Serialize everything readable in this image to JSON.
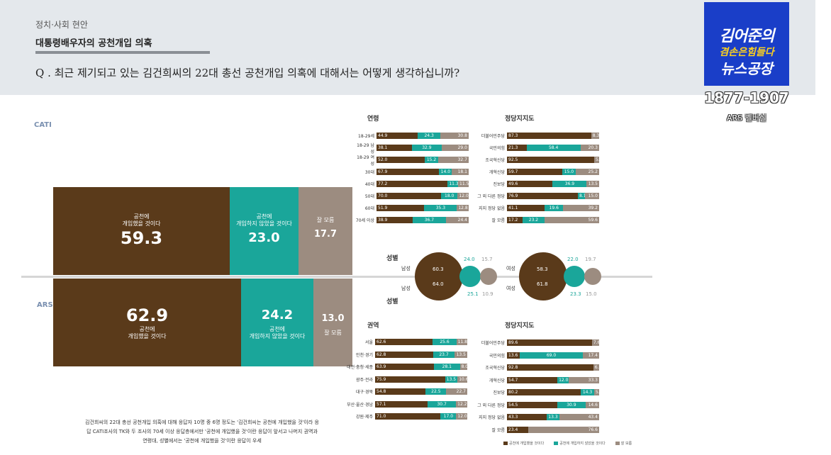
{
  "header": {
    "category": "정치·사회 현안",
    "title": "대통령배우자의 공천개입 의혹",
    "question": "Q . 최근 제기되고 있는 김건희씨의 22대 총선 공천개입 의혹에 대해서는 어떻게 생각하십니까?"
  },
  "logo": {
    "line1": "김어준의",
    "line2": "겸손은힘들다",
    "line3": "뉴스공장",
    "phone": "1877-1907",
    "caption": "ARS 벨버실"
  },
  "main": {
    "cati": {
      "label": "CATI",
      "seg1_label": "공천에\n개입했을 것이다",
      "seg1_value": "59.3",
      "seg2_label": "공천에\n개입하지 않았을 것이다",
      "seg2_value": "23.0",
      "seg3_label": "잘 모름",
      "seg3_value": "17.7"
    },
    "ars": {
      "label": "ARS",
      "seg1_label": "공천에\n개입했을 것이다",
      "seg1_value": "62.9",
      "seg2_label": "공천에\n개입하지 않았을 것이다",
      "seg2_value": "24.2",
      "seg3_label": "잘 모름",
      "seg3_value": "13.0"
    }
  },
  "footnote": "김건희씨의 22대 총선 공천개입 의혹에 대해 응답자 10명 중 6명 정도는 '김건희씨는 공천에 개입했을 것'이라 응답 CATI조사의 TK와 두 조사의 70세 이상 응답층에서만 '공천에 개입했을 것'이란 응답이 앞서고 나머지 권역과 연령대, 성별에서는 '공천에 개입했을 것'이란 응답이 우세",
  "colors": {
    "brown": "#5a3a1a",
    "teal": "#1aa69a",
    "gray": "#9c8c80"
  },
  "age": {
    "title": "연령",
    "rows": [
      {
        "label": "18-29세",
        "v": [
          44.9,
          24.3,
          30.8
        ]
      },
      {
        "label": "18-29 남성",
        "v": [
          38.1,
          32.9,
          29.0
        ]
      },
      {
        "label": "18-29 여성",
        "v": [
          52.0,
          15.2,
          32.7
        ]
      },
      {
        "label": "30대",
        "v": [
          67.9,
          14.0,
          18.1
        ]
      },
      {
        "label": "40대",
        "v": [
          77.2,
          11.3,
          11.5
        ]
      },
      {
        "label": "50대",
        "v": [
          70.0,
          18.0,
          12.0
        ]
      },
      {
        "label": "60대",
        "v": [
          51.9,
          35.3,
          12.8
        ]
      },
      {
        "label": "70세 이상",
        "v": [
          38.9,
          36.7,
          24.4
        ]
      }
    ]
  },
  "party_cati": {
    "title": "정당지지도",
    "rows": [
      {
        "label": "더불어민주당",
        "v": [
          87.3,
          null,
          8.3
        ]
      },
      {
        "label": "국민의힘",
        "v": [
          21.3,
          58.4,
          20.3
        ]
      },
      {
        "label": "조국혁신당",
        "v": [
          92.5,
          null,
          5.3
        ]
      },
      {
        "label": "개혁신당",
        "v": [
          59.7,
          15.0,
          25.2
        ]
      },
      {
        "label": "진보당",
        "v": [
          49.6,
          36.9,
          13.5
        ]
      },
      {
        "label": "그 외 다른 정당",
        "v": [
          76.9,
          8.1,
          15.0
        ]
      },
      {
        "label": "지지 정당 없음",
        "v": [
          41.1,
          19.6,
          39.2
        ]
      },
      {
        "label": "잘 모름",
        "v": [
          17.2,
          23.2,
          59.6
        ]
      }
    ]
  },
  "gender": {
    "title": "성별",
    "male": "남성",
    "female": "여성",
    "male_cati": [
      60.3,
      24.0,
      15.7
    ],
    "male_ars": [
      64.0,
      25.1,
      10.9
    ],
    "female_cati": [
      58.3,
      22.0,
      19.7
    ],
    "female_ars": [
      61.8,
      23.3,
      15.0
    ]
  },
  "region": {
    "title": "권역",
    "rows": [
      {
        "label": "서울",
        "v": [
          62.6,
          25.6,
          11.8
        ]
      },
      {
        "label": "인천·경기",
        "v": [
          62.8,
          23.7,
          13.5
        ]
      },
      {
        "label": "대전·충청·세종",
        "v": [
          63.9,
          28.1,
          8.0
        ]
      },
      {
        "label": "광주·전라",
        "v": [
          75.9,
          13.5,
          10.6
        ]
      },
      {
        "label": "대구·경북",
        "v": [
          54.8,
          22.5,
          22.7
        ]
      },
      {
        "label": "부산·울산·경남",
        "v": [
          57.1,
          30.7,
          12.2
        ]
      },
      {
        "label": "강원·제주",
        "v": [
          71.0,
          17.0,
          12.0
        ]
      }
    ]
  },
  "party_ars": {
    "title": "정당지지도",
    "rows": [
      {
        "label": "더불어민주당",
        "v": [
          89.6,
          null,
          7.6
        ]
      },
      {
        "label": "국민의힘",
        "v": [
          13.6,
          69.0,
          17.4
        ]
      },
      {
        "label": "조국혁신당",
        "v": [
          92.8,
          null,
          6.3
        ]
      },
      {
        "label": "개혁신당",
        "v": [
          54.7,
          12.0,
          33.3
        ]
      },
      {
        "label": "진보당",
        "v": [
          80.2,
          14.3,
          5.5
        ]
      },
      {
        "label": "그 외 다른 정당",
        "v": [
          54.5,
          30.9,
          14.6
        ]
      },
      {
        "label": "지지 정당 없음",
        "v": [
          43.3,
          13.3,
          43.4
        ]
      },
      {
        "label": "잘 모름",
        "v": [
          23.4,
          null,
          76.6
        ]
      }
    ]
  },
  "legend": [
    "공천에 개입했을 것이다",
    "공천에 개입하지 않았을 것이다",
    "잘 모름"
  ]
}
